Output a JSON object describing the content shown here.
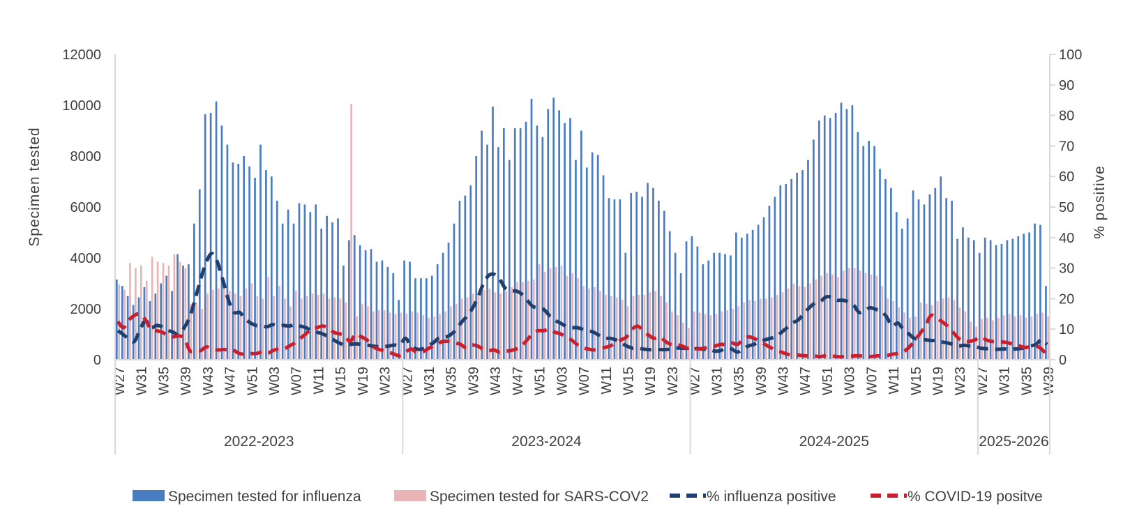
{
  "chart_data": {
    "type": "bar",
    "xlabel": "",
    "ylabel": "Specimen tested",
    "y2label": "% positive",
    "ylim": [
      0,
      12000
    ],
    "y2lim": [
      0,
      100
    ],
    "yticks": [
      0,
      2000,
      4000,
      6000,
      8000,
      10000,
      12000
    ],
    "y2ticks": [
      0,
      10,
      20,
      30,
      40,
      50,
      60,
      70,
      80,
      90,
      100
    ],
    "x_tick_labels": [
      "W27",
      "W31",
      "W35",
      "W39",
      "W43",
      "W47",
      "W51",
      "W03",
      "W07",
      "W11",
      "W15",
      "W19",
      "W23",
      "W27",
      "W31",
      "W35",
      "W39",
      "W43",
      "W47",
      "W51",
      "W03",
      "W07",
      "W11",
      "W15",
      "W19",
      "W23",
      "W27",
      "W31",
      "W35",
      "W39",
      "W43",
      "W47",
      "W51",
      "W03",
      "W07",
      "W11",
      "W15",
      "W19",
      "W23",
      "W27",
      "W31",
      "W35",
      "W39"
    ],
    "seasons": [
      {
        "label": "2022-2023",
        "weeks": 52
      },
      {
        "label": "2023-2024",
        "weeks": 52
      },
      {
        "label": "2024-2025",
        "weeks": 52
      },
      {
        "label": "2025-2026",
        "weeks": 13
      }
    ],
    "grid": false,
    "legend_position": "bottom",
    "series": [
      {
        "name": "Specimen tested for influenza",
        "kind": "bar",
        "axis": "left",
        "color": "#4a7cc1",
        "values": [
          3150,
          2900,
          2500,
          2150,
          2450,
          2850,
          2300,
          2600,
          3000,
          3300,
          2700,
          4150,
          3700,
          3750,
          5350,
          6700,
          9650,
          9700,
          10150,
          9200,
          8450,
          7750,
          7700,
          8000,
          7600,
          7150,
          8450,
          7450,
          7200,
          6250,
          5350,
          5900,
          5350,
          6150,
          6100,
          5800,
          6100,
          5150,
          5650,
          5400,
          5550,
          3700,
          4700,
          4900,
          4500,
          4300,
          4350,
          3850,
          3900,
          3650,
          3400,
          2350,
          3900,
          3850,
          3200,
          3200,
          3200,
          3300,
          3750,
          4200,
          4600,
          5350,
          6250,
          6450,
          6850,
          8000,
          9000,
          8450,
          9950,
          8350,
          9100,
          7850,
          9100,
          9100,
          9350,
          10250,
          9200,
          8750,
          9850,
          10300,
          9800,
          9300,
          9500,
          7850,
          9000,
          7550,
          8150,
          8050,
          7250,
          6350,
          6300,
          6300,
          4200,
          6550,
          6600,
          6400,
          6950,
          6750,
          6250,
          5850,
          5050,
          4200,
          3400,
          4650,
          4850,
          4450,
          3750,
          3900,
          4200,
          4200,
          4150,
          4100,
          5000,
          4800,
          4950,
          5100,
          5300,
          5600,
          6050,
          6400,
          6850,
          6900,
          7100,
          7350,
          7450,
          7850,
          8650,
          9400,
          9600,
          9500,
          9700,
          10100,
          9850,
          10000,
          8950,
          8400,
          8600,
          8400,
          7500,
          7100,
          6750,
          5800,
          5150,
          5550,
          6650,
          6300,
          6100,
          6500,
          6750,
          7200,
          6350,
          6250,
          4750,
          5200,
          4800,
          4700,
          4200,
          4800,
          4700,
          4500,
          4550,
          4700,
          4750,
          4850,
          4950,
          5000,
          5350,
          5300,
          2900
        ]
      },
      {
        "name": "Specimen tested for SARS-COV2",
        "kind": "bar",
        "axis": "left",
        "color": "#e8b4b8",
        "values": [
          2950,
          2750,
          3800,
          3600,
          3700,
          3100,
          4050,
          3850,
          3800,
          3700,
          4150,
          3850,
          3600,
          2200,
          2250,
          2000,
          2600,
          2750,
          2800,
          3100,
          2700,
          2600,
          2500,
          2800,
          3000,
          2500,
          2400,
          3250,
          2500,
          2900,
          2400,
          2100,
          2700,
          2400,
          2500,
          2600,
          2550,
          2600,
          2400,
          2450,
          2400,
          2250,
          10050,
          1700,
          2200,
          2100,
          1900,
          1950,
          1950,
          1850,
          1800,
          1850,
          1800,
          1900,
          1850,
          1750,
          1650,
          1700,
          1800,
          1900,
          2100,
          2200,
          2400,
          2450,
          2600,
          2650,
          2750,
          2800,
          2650,
          2600,
          2700,
          2850,
          3050,
          3050,
          3100,
          3150,
          3750,
          3450,
          3600,
          3650,
          3700,
          3300,
          3400,
          3200,
          2900,
          2800,
          2850,
          2700,
          2550,
          2500,
          2450,
          2350,
          2100,
          2500,
          2550,
          2550,
          2650,
          2700,
          2500,
          2250,
          1900,
          1750,
          1450,
          1250,
          1900,
          1850,
          1800,
          1750,
          1800,
          1900,
          1950,
          2000,
          2100,
          2250,
          2350,
          2300,
          2400,
          2400,
          2450,
          2550,
          2650,
          2800,
          3000,
          2900,
          2850,
          3000,
          3150,
          3300,
          3400,
          3350,
          3250,
          3500,
          3600,
          3600,
          3500,
          3400,
          3350,
          3300,
          2900,
          2400,
          2300,
          2050,
          1850,
          1650,
          1700,
          2250,
          2200,
          2150,
          2300,
          2400,
          2450,
          2350,
          2050,
          1900,
          1500,
          1300,
          1600,
          1650,
          1550,
          1650,
          1750,
          1800,
          1700,
          1750,
          1650,
          1700,
          1800,
          1850,
          1700
        ]
      },
      {
        "name": "% influenza positive",
        "kind": "line",
        "axis": "right",
        "color": "#1f3f6e",
        "values": [
          9.5,
          8.2,
          6.8,
          6.0,
          9.8,
          12.8,
          10.5,
          11.2,
          10.8,
          9.7,
          9.0,
          8.2,
          10.5,
          14.0,
          20.0,
          26.5,
          32.0,
          34.8,
          32.0,
          26.0,
          19.5,
          15.5,
          15.5,
          13.5,
          12.0,
          11.2,
          11.0,
          10.8,
          11.5,
          11.0,
          11.2,
          11.0,
          11.5,
          11.0,
          10.5,
          9.5,
          9.0,
          8.5,
          7.5,
          6.5,
          5.5,
          4.8,
          5.0,
          5.2,
          5.0,
          4.8,
          4.5,
          4.3,
          4.3,
          4.5,
          4.8,
          4.8,
          7.0,
          4.5,
          3.5,
          3.5,
          4.5,
          5.5,
          7.0,
          7.2,
          8.0,
          9.5,
          12.0,
          14.0,
          16.5,
          20.0,
          24.5,
          27.5,
          28.0,
          26.5,
          23.5,
          22.5,
          22.5,
          21.5,
          19.5,
          17.5,
          17.0,
          16.5,
          14.5,
          13.0,
          12.0,
          11.0,
          10.5,
          10.5,
          10.0,
          9.5,
          9.0,
          8.0,
          7.0,
          7.0,
          6.5,
          5.5,
          4.5,
          3.8,
          3.8,
          3.5,
          3.3,
          3.3,
          3.3,
          3.3,
          3.5,
          3.8,
          3.8,
          3.7,
          3.6,
          3.6,
          3.4,
          3.3,
          2.8,
          3.0,
          3.8,
          3.5,
          2.5,
          3.5,
          4.5,
          5.0,
          6.0,
          6.5,
          7.0,
          7.5,
          9.0,
          10.5,
          12.0,
          13.0,
          15.0,
          17.0,
          18.5,
          19.0,
          20.5,
          20.5,
          19.5,
          19.5,
          19.0,
          18.0,
          15.5,
          16.0,
          17.0,
          16.5,
          16.0,
          14.0,
          11.0,
          12.0,
          10.0,
          8.5,
          7.0,
          6.8,
          6.5,
          6.3,
          6.2,
          5.8,
          5.5,
          5.0,
          4.5,
          4.7,
          4.5,
          4.3,
          3.8,
          3.6,
          3.5,
          3.4,
          3.5,
          3.5,
          3.5,
          3.6,
          4.0,
          4.5,
          5.0,
          6.5,
          5.0
        ]
      },
      {
        "name": "% COVID-19 positve",
        "kind": "line",
        "axis": "right",
        "color": "#c8202e",
        "values": [
          12.5,
          10.5,
          13.0,
          14.5,
          15.0,
          13.0,
          10.0,
          9.5,
          9.0,
          8.0,
          7.5,
          7.8,
          7.0,
          3.0,
          2.8,
          3.0,
          4.2,
          3.5,
          3.2,
          3.3,
          3.3,
          3.0,
          2.0,
          1.8,
          2.0,
          2.0,
          2.5,
          2.0,
          3.0,
          3.5,
          3.5,
          4.5,
          5.5,
          7.0,
          8.5,
          10.0,
          10.5,
          11.0,
          10.5,
          9.0,
          8.5,
          8.0,
          6.0,
          8.5,
          7.5,
          6.5,
          4.5,
          3.5,
          3.0,
          2.5,
          1.8,
          1.3,
          2.5,
          3.5,
          2.5,
          2.5,
          3.5,
          4.5,
          5.5,
          6.0,
          6.0,
          5.5,
          5.0,
          3.8,
          4.8,
          4.5,
          3.5,
          3.0,
          3.2,
          2.5,
          2.8,
          3.0,
          3.5,
          4.5,
          6.5,
          8.5,
          9.5,
          9.5,
          10.0,
          9.0,
          8.5,
          7.5,
          6.5,
          5.0,
          4.0,
          3.5,
          3.2,
          3.5,
          4.0,
          4.5,
          5.5,
          6.5,
          7.5,
          10.0,
          11.0,
          9.5,
          8.0,
          7.0,
          7.5,
          6.0,
          5.0,
          5.0,
          4.5,
          3.8,
          4.0,
          3.5,
          3.8,
          4.0,
          4.5,
          5.0,
          5.0,
          5.5,
          5.0,
          6.5,
          7.5,
          7.0,
          6.0,
          5.0,
          4.0,
          3.0,
          2.5,
          1.8,
          1.5,
          1.5,
          1.3,
          1.2,
          1.2,
          1.0,
          1.3,
          1.3,
          1.0,
          1.0,
          1.2,
          1.2,
          1.3,
          1.0,
          1.0,
          1.2,
          1.3,
          1.3,
          1.8,
          2.0,
          2.5,
          4.0,
          6.0,
          8.5,
          11.0,
          14.5,
          13.5,
          12.5,
          11.0,
          9.0,
          7.0,
          6.0,
          6.0,
          6.5,
          7.5,
          6.5,
          6.0,
          6.0,
          5.8,
          5.5,
          5.0,
          4.5,
          4.0,
          4.3,
          4.5,
          3.5,
          1.5
        ]
      }
    ]
  }
}
